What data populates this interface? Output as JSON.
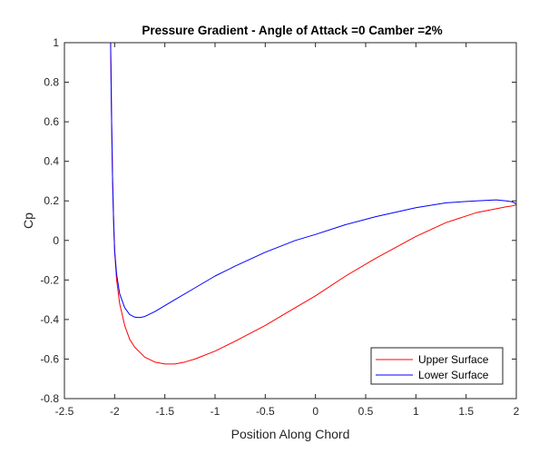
{
  "chart_data": {
    "type": "line",
    "title": "Pressure Gradient - Angle of Attack =0 Camber =2%",
    "xlabel": "Position Along Chord",
    "ylabel": "Cp",
    "xlim": [
      -2.5,
      2
    ],
    "ylim": [
      -0.8,
      1
    ],
    "xticks": [
      "-2.5",
      "-2",
      "-1.5",
      "-1",
      "-0.5",
      "0",
      "0.5",
      "1",
      "1.5",
      "2"
    ],
    "yticks": [
      "-0.8",
      "-0.6",
      "-0.4",
      "-0.2",
      "0",
      "0.2",
      "0.4",
      "0.6",
      "0.8",
      "1"
    ],
    "grid": false,
    "legend_position": "bottom-right",
    "colors": {
      "upper": "#ff0000",
      "lower": "#0000ff"
    },
    "series": [
      {
        "name": "Upper Surface",
        "color": "#ff0000",
        "x": [
          -2.04,
          -2.03,
          -2.02,
          -2.01,
          -2.0,
          -1.98,
          -1.95,
          -1.9,
          -1.85,
          -1.8,
          -1.7,
          -1.6,
          -1.5,
          -1.4,
          -1.3,
          -1.2,
          -1.0,
          -0.8,
          -0.5,
          -0.2,
          0.0,
          0.3,
          0.6,
          1.0,
          1.3,
          1.6,
          1.8,
          1.9,
          1.96,
          2.0
        ],
        "y": [
          1.0,
          0.6,
          0.3,
          0.1,
          -0.05,
          -0.2,
          -0.32,
          -0.43,
          -0.5,
          -0.54,
          -0.59,
          -0.615,
          -0.625,
          -0.625,
          -0.615,
          -0.6,
          -0.56,
          -0.51,
          -0.43,
          -0.34,
          -0.28,
          -0.18,
          -0.09,
          0.02,
          0.09,
          0.14,
          0.16,
          0.17,
          0.175,
          0.18
        ]
      },
      {
        "name": "Lower Surface",
        "color": "#0000ff",
        "x": [
          -2.04,
          -2.03,
          -2.02,
          -2.01,
          -2.0,
          -1.98,
          -1.95,
          -1.9,
          -1.85,
          -1.8,
          -1.75,
          -1.7,
          -1.6,
          -1.5,
          -1.4,
          -1.2,
          -1.0,
          -0.8,
          -0.5,
          -0.2,
          0.0,
          0.3,
          0.6,
          1.0,
          1.3,
          1.6,
          1.8,
          1.9,
          1.96,
          2.0
        ],
        "y": [
          1.0,
          0.6,
          0.3,
          0.1,
          -0.05,
          -0.17,
          -0.27,
          -0.34,
          -0.375,
          -0.388,
          -0.39,
          -0.385,
          -0.36,
          -0.33,
          -0.3,
          -0.24,
          -0.18,
          -0.13,
          -0.06,
          0.0,
          0.03,
          0.08,
          0.12,
          0.165,
          0.19,
          0.2,
          0.205,
          0.2,
          0.195,
          0.185
        ]
      }
    ]
  }
}
